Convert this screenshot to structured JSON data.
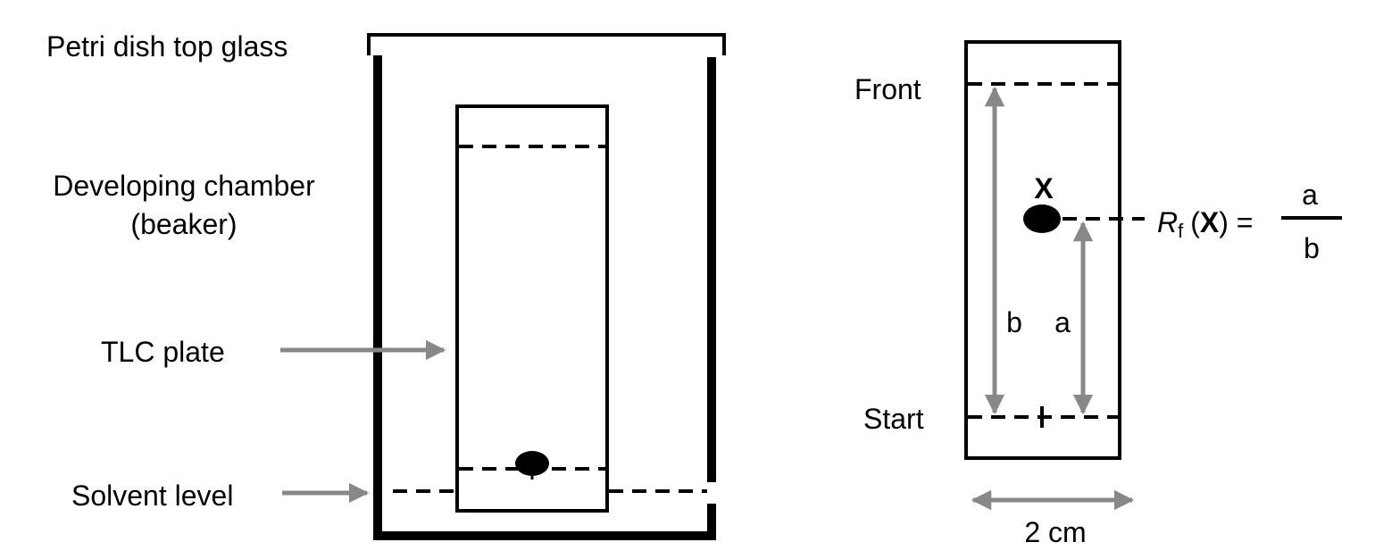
{
  "colors": {
    "ink": "#000000",
    "arrow": "#888888",
    "background": "#ffffff"
  },
  "left_panel": {
    "petri_label": "Petri dish top glass",
    "chamber_label_line1": "Developing chamber",
    "chamber_label_line2": "(beaker)",
    "plate_label": "TLC plate",
    "solvent_label": "Solvent level"
  },
  "right_panel": {
    "front_label": "Front",
    "start_label": "Start",
    "spot_label": "X",
    "b_label": "b",
    "a_label": "a",
    "width_label": "2 cm",
    "formula": {
      "r": "R",
      "f": "f",
      "open": "(",
      "x": "X",
      "close": ") =",
      "numerator": "a",
      "denominator": "b"
    }
  }
}
